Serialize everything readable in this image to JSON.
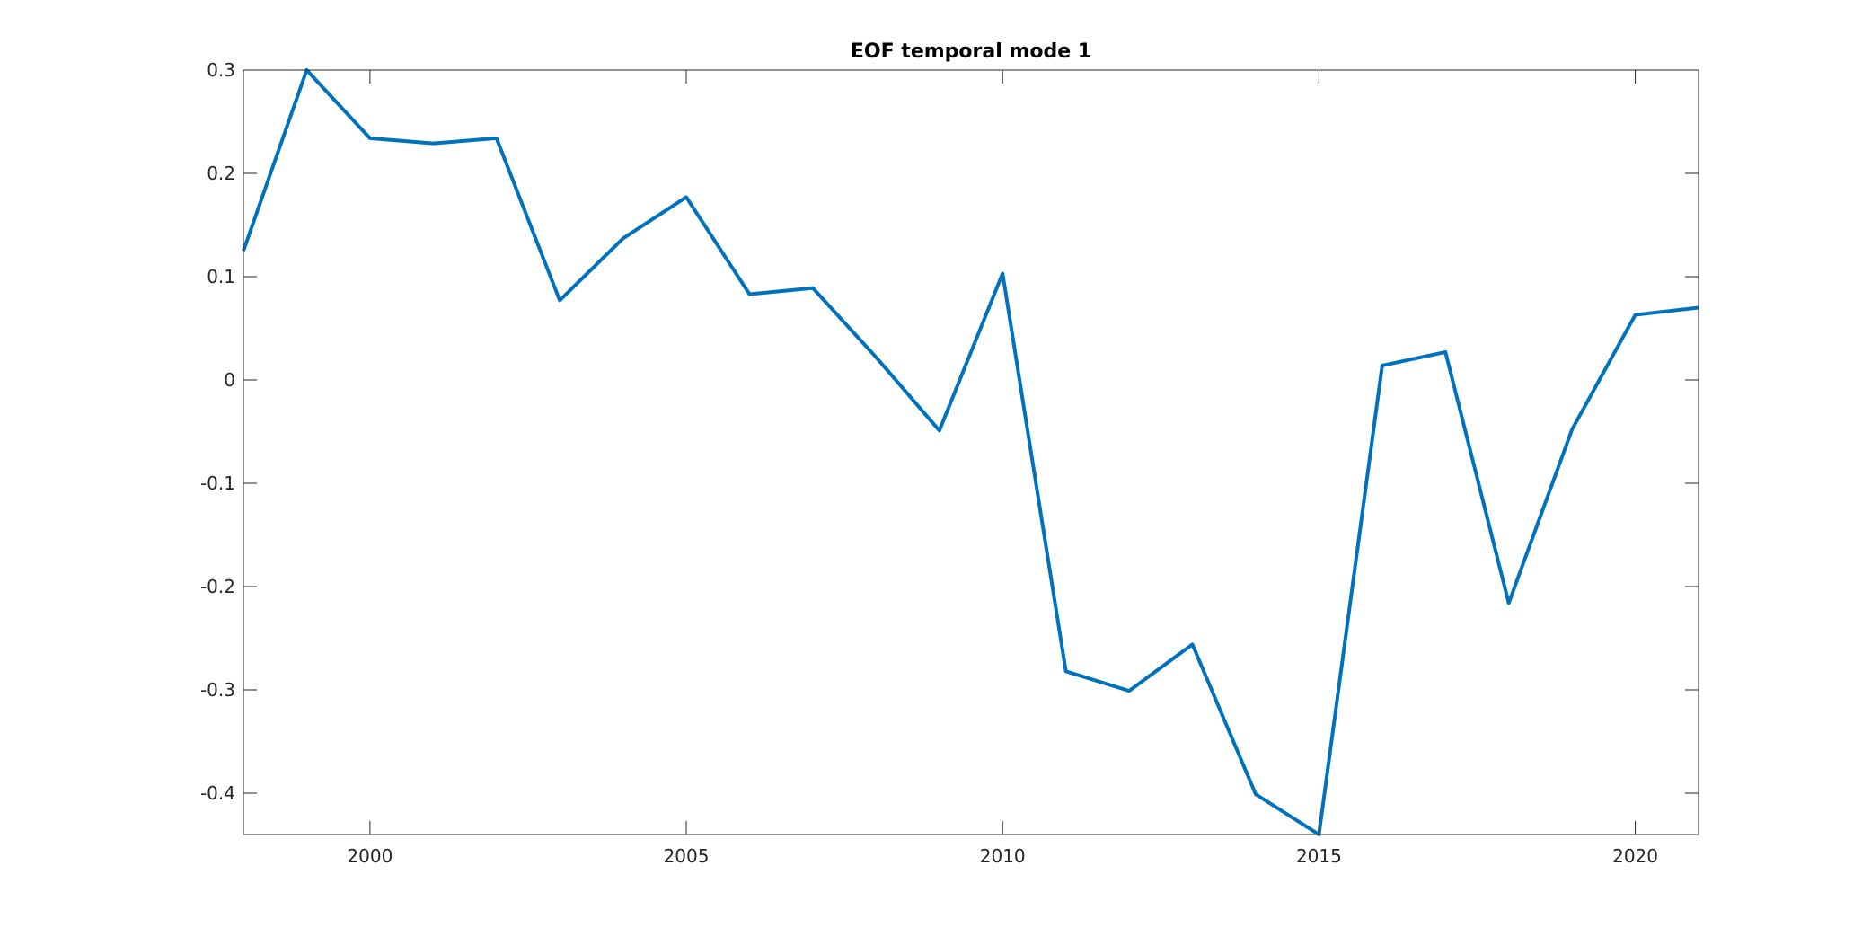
{
  "chart_data": {
    "type": "line",
    "title": "EOF temporal mode 1",
    "xlabel": "",
    "ylabel": "",
    "xlim": [
      1998,
      2021
    ],
    "ylim": [
      -0.44,
      0.3
    ],
    "xticks": [
      2000,
      2005,
      2010,
      2015,
      2020
    ],
    "xtick_labels": [
      "2000",
      "2005",
      "2010",
      "2015",
      "2020"
    ],
    "yticks": [
      0.3,
      0.2,
      0.1,
      0,
      -0.1,
      -0.2,
      -0.3,
      -0.4
    ],
    "ytick_labels": [
      "0.3",
      "0.2",
      "0.1",
      "0",
      "-0.1",
      "-0.2",
      "-0.3",
      "-0.4"
    ],
    "grid": false,
    "legend": "none",
    "series": [
      {
        "color": "#0072BD",
        "x": [
          1998,
          1999,
          2000,
          2001,
          2002,
          2003,
          2004,
          2005,
          2006,
          2007,
          2008,
          2009,
          2010,
          2011,
          2012,
          2013,
          2014,
          2015,
          2016,
          2017,
          2018,
          2019,
          2020,
          2021
        ],
        "y": [
          0.125,
          0.3,
          0.234,
          0.229,
          0.234,
          0.077,
          0.137,
          0.177,
          0.083,
          0.089,
          0.022,
          -0.049,
          0.103,
          -0.282,
          -0.301,
          -0.256,
          -0.401,
          -0.44,
          0.014,
          0.027,
          -0.216,
          -0.048,
          0.063,
          0.07
        ]
      }
    ]
  }
}
